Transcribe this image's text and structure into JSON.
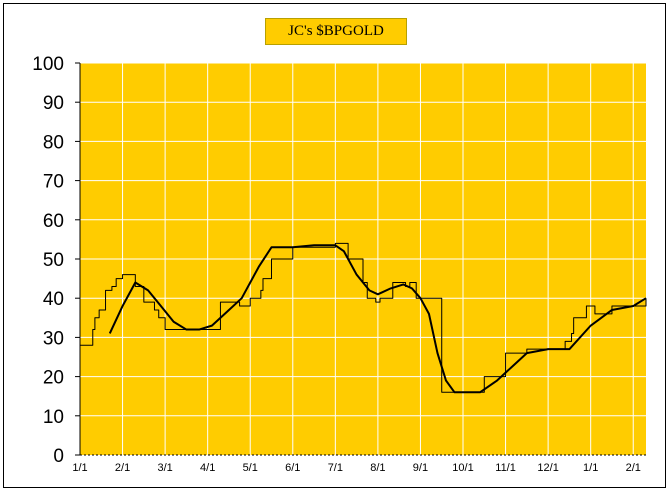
{
  "chart_data": {
    "type": "line",
    "title": "JC's $BPGOLD",
    "xlabel": "",
    "ylabel": "",
    "ylim": [
      0,
      100
    ],
    "y_ticks": [
      0,
      10,
      20,
      30,
      40,
      50,
      60,
      70,
      80,
      90,
      100
    ],
    "x_ticks": [
      "1/1",
      "2/1",
      "3/1",
      "4/1",
      "5/1",
      "6/1",
      "7/1",
      "8/1",
      "9/1",
      "10/1",
      "11/1",
      "12/1",
      "1/1",
      "2/1"
    ],
    "x_range_months": [
      0,
      13.3
    ],
    "grid": true,
    "colors": {
      "plot_background": "#ffcc00",
      "gridlines": "#ffffff",
      "step_series": "#000000",
      "smooth_series": "#000000"
    },
    "series": [
      {
        "style": "step",
        "x": [
          0,
          0.3,
          0.35,
          0.45,
          0.6,
          0.75,
          0.85,
          1.0,
          1.3,
          1.5,
          1.75,
          1.75,
          1.85,
          2.0,
          2.2,
          2.4,
          2.7,
          3.0,
          3.3,
          3.55,
          3.75,
          4.0,
          4.25,
          4.3,
          4.5,
          5.0,
          5.5,
          6.0,
          6.3,
          6.55,
          6.65,
          6.75,
          6.95,
          7.05,
          7.35,
          7.55,
          7.65,
          7.75,
          7.9,
          8.2,
          8.5,
          9.0,
          9.3,
          9.5,
          9.8,
          10.0,
          10.5,
          11.0,
          11.2,
          11.4,
          11.55,
          11.6,
          11.9,
          12.1,
          12.5,
          13.0,
          13.3
        ],
        "y": [
          28,
          32,
          35,
          37,
          42,
          43,
          45,
          46,
          43,
          39,
          39,
          37,
          35,
          32,
          32,
          32,
          32,
          32,
          39,
          39,
          38,
          40,
          42,
          45,
          50,
          53,
          53,
          54,
          50,
          50,
          44,
          40,
          39,
          40,
          44,
          44,
          43,
          44,
          40,
          40,
          16,
          16,
          16,
          20,
          20,
          26,
          27,
          27,
          27,
          29,
          31,
          35,
          38,
          36,
          38,
          38,
          40
        ]
      },
      {
        "style": "smooth",
        "x": [
          0.7,
          1.0,
          1.3,
          1.6,
          1.9,
          2.2,
          2.5,
          2.8,
          3.1,
          3.5,
          3.8,
          4.2,
          4.5,
          5.0,
          5.5,
          6.0,
          6.2,
          6.5,
          6.8,
          7.0,
          7.3,
          7.6,
          7.8,
          8.0,
          8.2,
          8.4,
          8.6,
          8.8,
          9.0,
          9.4,
          9.8,
          10.2,
          10.5,
          11.0,
          11.5,
          12.0,
          12.5,
          13.0,
          13.3
        ],
        "y": [
          31,
          38,
          44,
          42,
          38,
          34,
          32,
          32,
          33,
          37,
          40,
          48,
          53,
          53,
          53.5,
          53.5,
          52,
          46,
          42,
          41,
          42.5,
          43.5,
          42.5,
          40,
          36,
          26,
          19,
          16,
          16,
          16,
          19,
          23,
          26,
          27,
          27,
          33,
          37,
          38,
          40
        ]
      }
    ]
  }
}
